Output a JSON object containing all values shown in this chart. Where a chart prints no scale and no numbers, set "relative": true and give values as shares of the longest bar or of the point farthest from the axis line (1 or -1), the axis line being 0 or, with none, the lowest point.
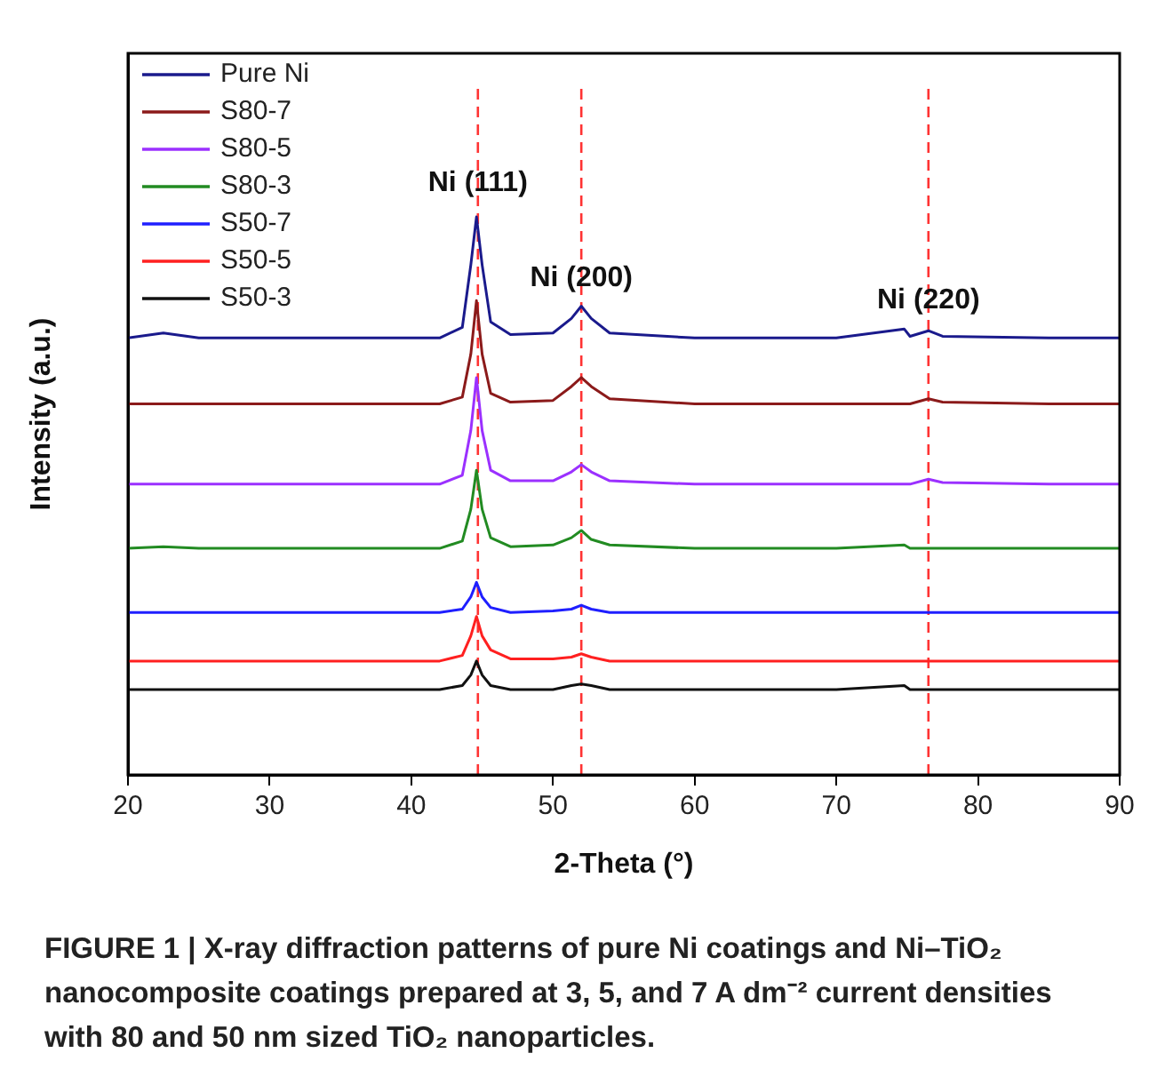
{
  "chart_data": {
    "type": "line",
    "relative": true,
    "xlabel": "2-Theta (°)",
    "ylabel": "Intensity (a.u.)",
    "xlim": [
      20,
      90
    ],
    "xticks": [
      20,
      30,
      40,
      50,
      60,
      70,
      80,
      90
    ],
    "grid": false,
    "legend": "top left",
    "marker": "none",
    "line_style": "solid",
    "x": [
      20,
      22.5,
      25,
      42,
      43.6,
      44.2,
      44.6,
      45.0,
      45.6,
      47,
      50,
      51.3,
      52.0,
      52.7,
      54,
      60,
      70,
      74.8,
      75.2,
      76.5,
      77.5,
      85,
      90
    ],
    "series": [
      {
        "name": "Pure Ni",
        "color": "#1a1a8c",
        "values": [
          0.783,
          0.792,
          0.783,
          0.783,
          0.802,
          0.914,
          1,
          0.914,
          0.812,
          0.789,
          0.792,
          0.818,
          0.84,
          0.818,
          0.792,
          0.783,
          0.783,
          0.799,
          0.786,
          0.796,
          0.786,
          0.783,
          0.783
        ]
      },
      {
        "name": "S80-7",
        "color": "#8b1a1a",
        "values": [
          0.665,
          0.665,
          0.665,
          0.665,
          0.677,
          0.754,
          0.85,
          0.754,
          0.684,
          0.668,
          0.671,
          0.696,
          0.712,
          0.696,
          0.674,
          0.665,
          0.665,
          0.665,
          0.665,
          0.674,
          0.668,
          0.665,
          0.665
        ]
      },
      {
        "name": "S80-5",
        "color": "#9b30ff",
        "values": [
          0.521,
          0.521,
          0.521,
          0.521,
          0.537,
          0.617,
          0.712,
          0.617,
          0.546,
          0.527,
          0.527,
          0.543,
          0.556,
          0.543,
          0.527,
          0.521,
          0.521,
          0.521,
          0.521,
          0.53,
          0.524,
          0.521,
          0.521
        ]
      },
      {
        "name": "S80-3",
        "color": "#228b22",
        "values": [
          0.406,
          0.409,
          0.406,
          0.406,
          0.419,
          0.476,
          0.546,
          0.476,
          0.425,
          0.409,
          0.412,
          0.425,
          0.438,
          0.422,
          0.412,
          0.406,
          0.406,
          0.412,
          0.406,
          0.406,
          0.406,
          0.406,
          0.406
        ]
      },
      {
        "name": "S50-7",
        "color": "#1f1fff",
        "values": [
          0.291,
          0.291,
          0.291,
          0.291,
          0.297,
          0.319,
          0.345,
          0.319,
          0.3,
          0.291,
          0.294,
          0.297,
          0.304,
          0.297,
          0.291,
          0.291,
          0.291,
          0.291,
          0.291,
          0.291,
          0.291,
          0.291,
          0.291
        ]
      },
      {
        "name": "S50-5",
        "color": "#ff2020",
        "values": [
          0.204,
          0.204,
          0.204,
          0.204,
          0.214,
          0.249,
          0.284,
          0.249,
          0.224,
          0.208,
          0.208,
          0.211,
          0.217,
          0.211,
          0.204,
          0.204,
          0.204,
          0.204,
          0.204,
          0.204,
          0.204,
          0.204,
          0.204
        ]
      },
      {
        "name": "S50-3",
        "color": "#111111",
        "values": [
          0.153,
          0.153,
          0.153,
          0.153,
          0.16,
          0.179,
          0.204,
          0.179,
          0.16,
          0.153,
          0.153,
          0.16,
          0.163,
          0.16,
          0.153,
          0.153,
          0.153,
          0.16,
          0.153,
          0.153,
          0.153,
          0.153,
          0.153
        ]
      }
    ],
    "ref_lines": [
      {
        "axis": "x",
        "value": 44.7,
        "color": "#ff3333",
        "line_style": "dashed"
      },
      {
        "axis": "x",
        "value": 52.0,
        "color": "#ff3333",
        "line_style": "dashed"
      },
      {
        "axis": "x",
        "value": 76.5,
        "color": "#ff3333",
        "line_style": "dashed"
      }
    ],
    "annotations": [
      {
        "text": "Ni (111)",
        "x": 44.7,
        "y": 1.06
      },
      {
        "text": "Ni (200)",
        "x": 52.0,
        "y": 0.89
      },
      {
        "text": "Ni (220)",
        "x": 76.5,
        "y": 0.85
      },
      "FIGURE 1 | X-ray diffraction patterns of pure Ni coatings and Ni–TiO₂ nanocomposite coatings prepared at 3, 5, and 7 A dm⁻² current densities with 80 and 50 nm sized TiO₂ nanoparticles."
    ]
  }
}
